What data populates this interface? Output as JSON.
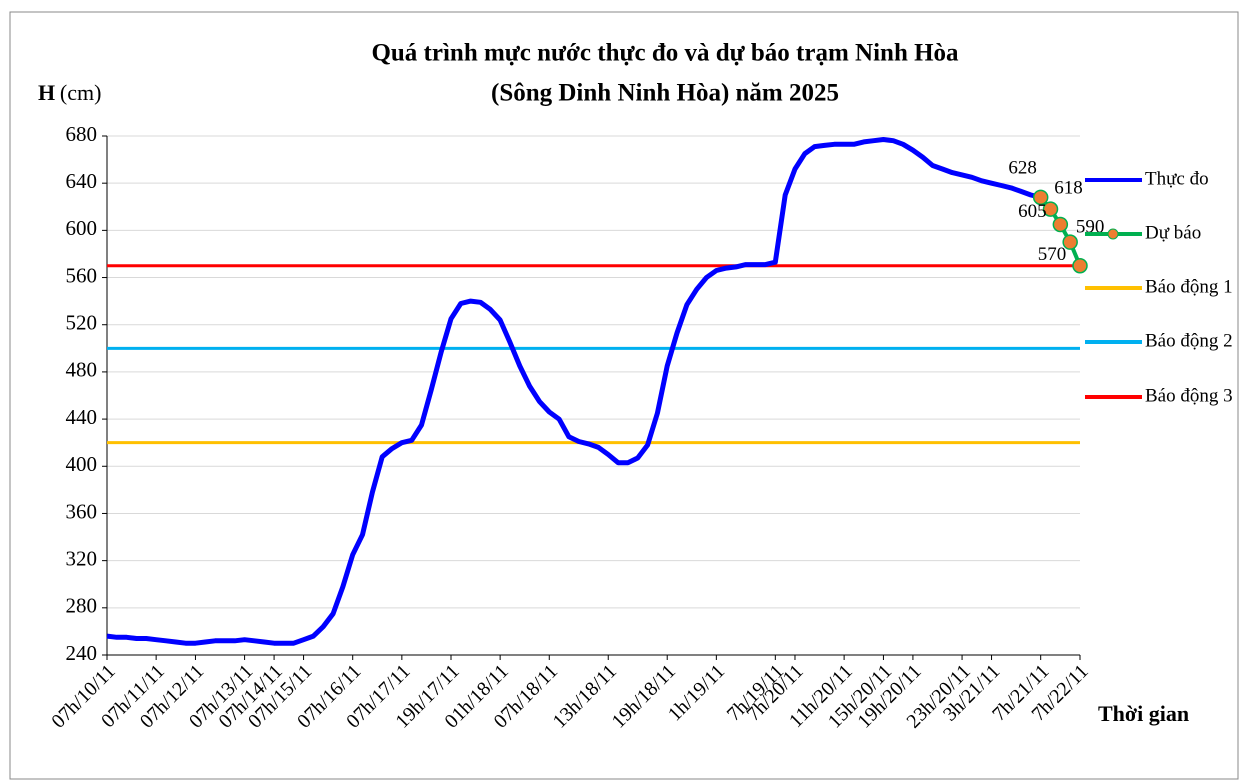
{
  "chart_data": {
    "type": "line",
    "title": [
      "Quá trình mực nước thực đo và dự báo trạm Ninh Hòa",
      "(Sông Dinh Ninh Hòa) năm 2025"
    ],
    "y_label": "H",
    "y_unit": "(cm)",
    "x_label": "Thời gian",
    "ylim": [
      240,
      680
    ],
    "yticks": [
      240,
      280,
      320,
      360,
      400,
      440,
      480,
      520,
      560,
      600,
      640,
      680
    ],
    "grid": true,
    "legend": "right",
    "categories": [
      "07h/10/11",
      null,
      null,
      null,
      null,
      "07h/11/11",
      null,
      null,
      null,
      "07h/12/11",
      null,
      null,
      null,
      null,
      "07h/13/11",
      null,
      null,
      "07h/14/11",
      null,
      null,
      "07h/15/11",
      null,
      null,
      null,
      null,
      "07h/16/11",
      null,
      null,
      null,
      null,
      "07h/17/11",
      null,
      null,
      null,
      null,
      "19h/17/11",
      null,
      null,
      null,
      null,
      "01h/18/11",
      null,
      null,
      null,
      null,
      "07h/18/11",
      null,
      null,
      null,
      null,
      null,
      "13h/18/11",
      null,
      null,
      null,
      null,
      null,
      "19h/18/11",
      null,
      null,
      null,
      null,
      "1h/19/11",
      null,
      null,
      null,
      null,
      null,
      "7h/19/11",
      null,
      "7h/20/11",
      null,
      null,
      null,
      null,
      "11h/20/11",
      null,
      null,
      null,
      "15h/20/11",
      null,
      null,
      "19h/20/11",
      null,
      null,
      null,
      null,
      "23h/20/11",
      null,
      null,
      "3h/21/11",
      null,
      null,
      null,
      null,
      "7h/21/11",
      null,
      null,
      null,
      "7h/22/11"
    ],
    "series": [
      {
        "name": "Thực đo",
        "color": "#0000ff",
        "values": [
          256,
          255,
          255,
          254,
          254,
          253,
          252,
          251,
          250,
          250,
          251,
          252,
          252,
          252,
          253,
          252,
          251,
          250,
          250,
          250,
          253,
          256,
          264,
          275,
          298,
          325,
          342,
          378,
          408,
          415,
          420,
          422,
          435,
          465,
          497,
          525,
          538,
          540,
          539,
          533,
          524,
          505,
          485,
          468,
          455,
          446,
          440,
          425,
          421,
          419,
          416,
          410,
          403,
          403,
          407,
          418,
          445,
          485,
          513,
          537,
          550,
          560,
          566,
          568,
          569,
          571,
          571,
          571,
          573,
          630,
          652,
          665,
          671,
          672,
          673,
          673,
          673,
          675,
          676,
          677,
          676,
          673,
          668,
          662,
          655,
          652,
          649,
          647,
          645,
          642,
          640,
          638,
          636,
          633,
          630,
          628,
          null,
          null,
          null,
          null
        ]
      },
      {
        "name": "Dự báo",
        "color": "#00b050",
        "marker_color": "#ed7d31",
        "values": [
          null,
          null,
          null,
          null,
          null,
          null,
          null,
          null,
          null,
          null,
          null,
          null,
          null,
          null,
          null,
          null,
          null,
          null,
          null,
          null,
          null,
          null,
          null,
          null,
          null,
          null,
          null,
          null,
          null,
          null,
          null,
          null,
          null,
          null,
          null,
          null,
          null,
          null,
          null,
          null,
          null,
          null,
          null,
          null,
          null,
          null,
          null,
          null,
          null,
          null,
          null,
          null,
          null,
          null,
          null,
          null,
          null,
          null,
          null,
          null,
          null,
          null,
          null,
          null,
          null,
          null,
          null,
          null,
          null,
          null,
          null,
          null,
          null,
          null,
          null,
          null,
          null,
          null,
          null,
          null,
          null,
          null,
          null,
          null,
          null,
          null,
          null,
          null,
          null,
          null,
          null,
          null,
          null,
          null,
          null,
          628,
          618,
          605,
          590,
          570
        ]
      }
    ],
    "thresholds": [
      {
        "name": "Báo động 1",
        "color": "#ffc000",
        "value": 420
      },
      {
        "name": "Báo động 2",
        "color": "#00b0f0",
        "value": 500
      },
      {
        "name": "Báo động 3",
        "color": "#ff0000",
        "value": 570
      }
    ]
  }
}
